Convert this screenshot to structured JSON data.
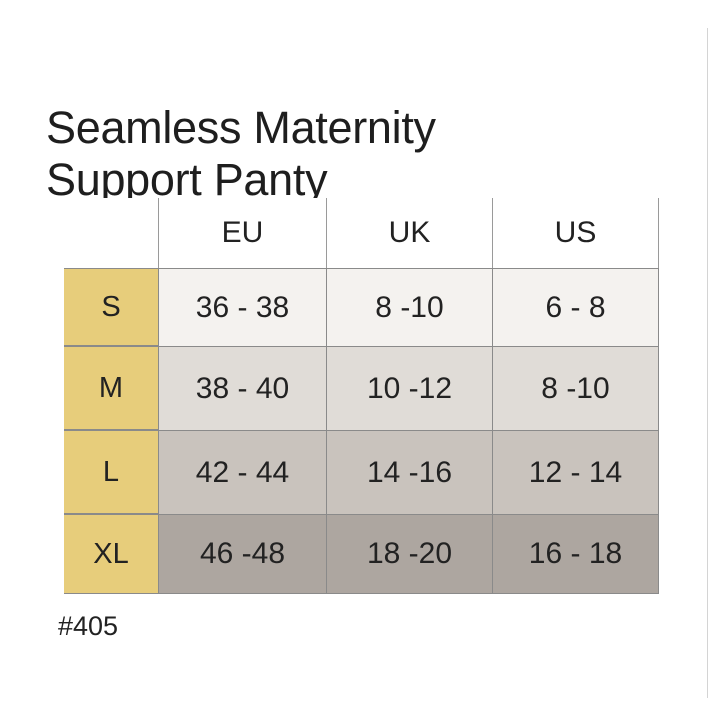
{
  "title": {
    "line1": "Seamless Maternity",
    "line2": "Support Panty"
  },
  "table": {
    "columns": [
      "EU",
      "UK",
      "US"
    ],
    "rows": [
      {
        "size": "S",
        "values": [
          "36 - 38",
          "8 -10",
          "6 - 8"
        ]
      },
      {
        "size": "M",
        "values": [
          "38 - 40",
          "10 -12",
          "8 -10"
        ]
      },
      {
        "size": "L",
        "values": [
          "42 - 44",
          "14 -16",
          "12 - 14"
        ]
      },
      {
        "size": "XL",
        "values": [
          "46 -48",
          "18 -20",
          "16 - 18"
        ]
      }
    ]
  },
  "footnote": "#405",
  "colors": {
    "size_column": "#e7cd7b",
    "row_s": "#f4f2ef",
    "row_m": "#e0dcd7",
    "row_l": "#c9c3bd",
    "row_xl": "#ada6a0"
  }
}
